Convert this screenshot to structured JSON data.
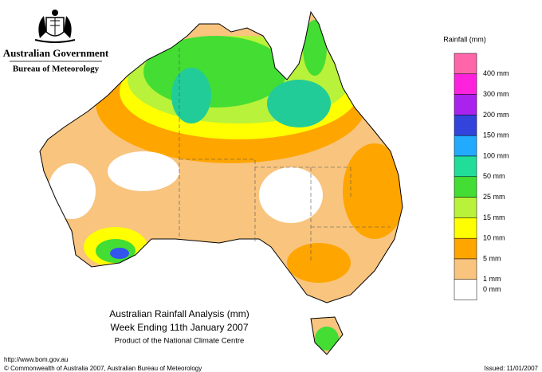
{
  "header": {
    "organisation": "Australian Government",
    "agency": "Bureau of Meteorology"
  },
  "legend": {
    "title": "Rainfall (mm)",
    "colors": [
      "#ff66aa",
      "#ff22dd",
      "#aa22ee",
      "#3344dd",
      "#22aaff",
      "#22dd99",
      "#44dd33",
      "#b8f23a",
      "#ffff00",
      "#ffa500",
      "#f8c47e",
      "#ffffff"
    ],
    "labels": [
      "400 mm",
      "300 mm",
      "200 mm",
      "150 mm",
      "100 mm",
      "50 mm",
      "25 mm",
      "15 mm",
      "10 mm",
      "5 mm",
      "1 mm",
      "0 mm"
    ]
  },
  "title": {
    "line1": "Australian Rainfall Analysis (mm)",
    "line2": "Week Ending 11th January 2007",
    "line3": "Product of the National Climate Centre"
  },
  "footer": {
    "url": "http://www.bom.gov.au",
    "copyright": "© Commonwealth of Australia 2007, Australian Bureau of Meteorology",
    "issued": "Issued: 11/01/2007"
  }
}
